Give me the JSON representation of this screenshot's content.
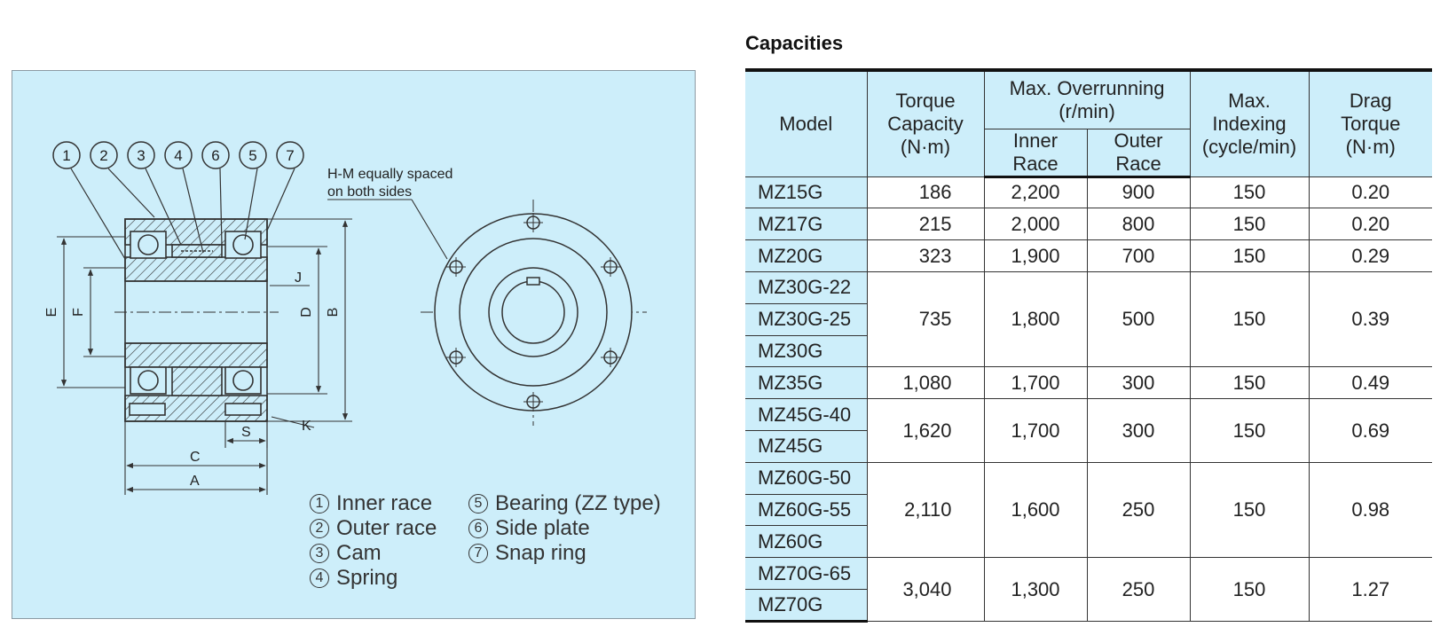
{
  "diagram": {
    "part_numbers": [
      "1",
      "2",
      "3",
      "4",
      "6",
      "5",
      "7"
    ],
    "annotation_line1": "H-M equally spaced",
    "annotation_line2": "on both sides",
    "dimension_labels": {
      "E": "E",
      "F": "F",
      "D": "D",
      "B": "B",
      "J": "J",
      "K": "K",
      "S": "S",
      "C": "C",
      "A": "A"
    },
    "legend_left": [
      {
        "num": "1",
        "label": "Inner race"
      },
      {
        "num": "2",
        "label": "Outer race"
      },
      {
        "num": "3",
        "label": "Cam"
      },
      {
        "num": "4",
        "label": "Spring"
      }
    ],
    "legend_right": [
      {
        "num": "5",
        "label": "Bearing (ZZ type)"
      },
      {
        "num": "6",
        "label": "Side plate"
      },
      {
        "num": "7",
        "label": "Snap ring"
      }
    ],
    "colors": {
      "panel_bg": "#cdeefa",
      "line": "#333333"
    }
  },
  "capacities": {
    "title": "Capacities",
    "headers": {
      "model": "Model",
      "torque_line1": "Torque",
      "torque_line2": "Capacity",
      "torque_line3": "(N·m)",
      "overrun_line1": "Max. Overrunning",
      "overrun_line2": "(r/min)",
      "inner_line1": "Inner",
      "inner_line2": "Race",
      "outer_line1": "Outer",
      "outer_line2": "Race",
      "indexing_line1": "Max.",
      "indexing_line2": "Indexing",
      "indexing_line3": "(cycle/min)",
      "drag_line1": "Drag",
      "drag_line2": "Torque",
      "drag_line3": "(N·m)"
    },
    "groups": [
      {
        "models": [
          "MZ15G"
        ],
        "torque": "186",
        "inner": "2,200",
        "outer": "900",
        "indexing": "150",
        "drag": "0.20"
      },
      {
        "models": [
          "MZ17G"
        ],
        "torque": "215",
        "inner": "2,000",
        "outer": "800",
        "indexing": "150",
        "drag": "0.20"
      },
      {
        "models": [
          "MZ20G"
        ],
        "torque": "323",
        "inner": "1,900",
        "outer": "700",
        "indexing": "150",
        "drag": "0.29"
      },
      {
        "models": [
          "MZ30G-22",
          "MZ30G-25",
          "MZ30G"
        ],
        "torque": "735",
        "inner": "1,800",
        "outer": "500",
        "indexing": "150",
        "drag": "0.39"
      },
      {
        "models": [
          "MZ35G"
        ],
        "torque": "1,080",
        "inner": "1,700",
        "outer": "300",
        "indexing": "150",
        "drag": "0.49"
      },
      {
        "models": [
          "MZ45G-40",
          "MZ45G"
        ],
        "torque": "1,620",
        "inner": "1,700",
        "outer": "300",
        "indexing": "150",
        "drag": "0.69"
      },
      {
        "models": [
          "MZ60G-50",
          "MZ60G-55",
          "MZ60G"
        ],
        "torque": "2,110",
        "inner": "1,600",
        "outer": "250",
        "indexing": "150",
        "drag": "0.98"
      },
      {
        "models": [
          "MZ70G-65",
          "MZ70G"
        ],
        "torque": "3,040",
        "inner": "1,300",
        "outer": "250",
        "indexing": "150",
        "drag": "1.27"
      }
    ]
  }
}
